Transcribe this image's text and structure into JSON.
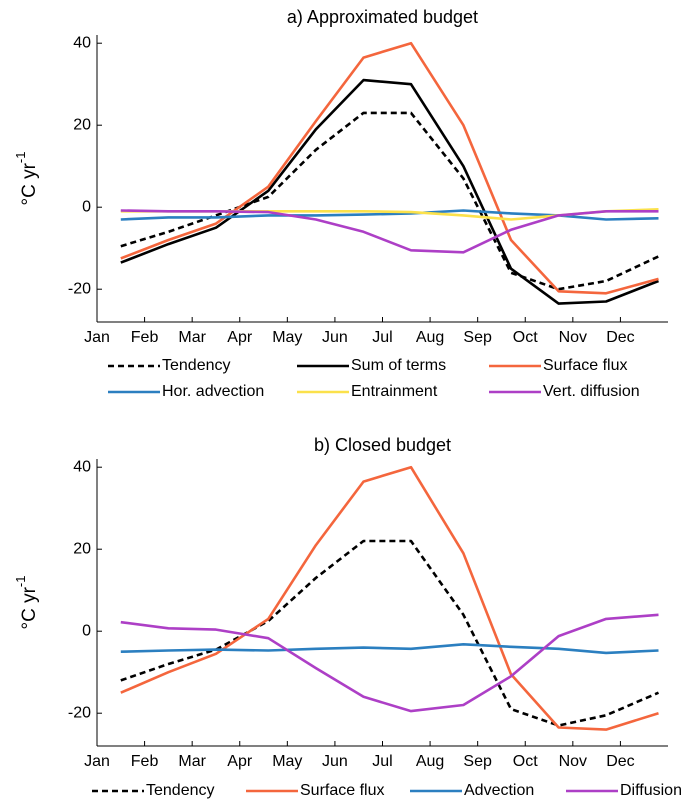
{
  "chart_data": [
    {
      "type": "line",
      "title": "a) Approximated budget",
      "ylabel": {
        "text": "°C yr",
        "superscript": "-1"
      },
      "xlim": [
        0,
        12
      ],
      "xticks": [
        {
          "value": 0,
          "label": "Jan"
        },
        {
          "value": 1,
          "label": "Feb"
        },
        {
          "value": 2,
          "label": "Mar"
        },
        {
          "value": 3,
          "label": "Apr"
        },
        {
          "value": 4,
          "label": "May"
        },
        {
          "value": 5,
          "label": "Jun"
        },
        {
          "value": 6,
          "label": "Jul"
        },
        {
          "value": 7,
          "label": "Aug"
        },
        {
          "value": 8,
          "label": "Sep"
        },
        {
          "value": 9,
          "label": "Oct"
        },
        {
          "value": 10,
          "label": "Nov"
        },
        {
          "value": 11,
          "label": "Dec"
        }
      ],
      "ylim": [
        -28,
        42
      ],
      "yticks": [
        -20,
        0,
        20,
        40
      ],
      "x": [
        0.5,
        1.5,
        2.5,
        3.6,
        4.6,
        5.6,
        6.6,
        7.7,
        8.7,
        9.7,
        10.7,
        11.8
      ],
      "series": [
        {
          "name": "Tendency",
          "color": "#000000",
          "dashed": true,
          "values": [
            -9.5,
            -6,
            -2,
            2.5,
            14,
            23,
            23,
            7,
            -16,
            -20,
            -18,
            -12
          ]
        },
        {
          "name": "Sum of terms",
          "color": "#000000",
          "dashed": false,
          "values": [
            -13.5,
            -9,
            -5,
            4,
            19,
            31,
            30,
            10,
            -15,
            -23.5,
            -23,
            -18
          ]
        },
        {
          "name": "Surface flux",
          "color": "#f4663d",
          "dashed": false,
          "values": [
            -12.5,
            -8,
            -4,
            5,
            21,
            36.5,
            40,
            20,
            -8,
            -20.5,
            -21,
            -17.5
          ]
        },
        {
          "name": "Hor. advection",
          "color": "#2b7fc0",
          "dashed": false,
          "values": [
            -3,
            -2.5,
            -2.5,
            -2,
            -2,
            -1.8,
            -1.5,
            -0.8,
            -1.5,
            -2,
            -3,
            -2.7
          ]
        },
        {
          "name": "Entrainment",
          "color": "#fbe14b",
          "dashed": false,
          "values": [
            -1,
            -1,
            -1,
            -1,
            -1,
            -1,
            -1.2,
            -2,
            -3,
            -2,
            -1,
            -0.5
          ]
        },
        {
          "name": "Vert. diffusion",
          "color": "#ad3fc6",
          "dashed": false,
          "values": [
            -0.8,
            -1,
            -1,
            -1.2,
            -3,
            -6,
            -10.5,
            -11,
            -5.5,
            -2,
            -1,
            -1
          ]
        }
      ]
    },
    {
      "type": "line",
      "title": "b) Closed budget",
      "ylabel": {
        "text": "°C yr",
        "superscript": "-1"
      },
      "xlim": [
        0,
        12
      ],
      "xticks": [
        {
          "value": 0,
          "label": "Jan"
        },
        {
          "value": 1,
          "label": "Feb"
        },
        {
          "value": 2,
          "label": "Mar"
        },
        {
          "value": 3,
          "label": "Apr"
        },
        {
          "value": 4,
          "label": "May"
        },
        {
          "value": 5,
          "label": "Jun"
        },
        {
          "value": 6,
          "label": "Jul"
        },
        {
          "value": 7,
          "label": "Aug"
        },
        {
          "value": 8,
          "label": "Sep"
        },
        {
          "value": 9,
          "label": "Oct"
        },
        {
          "value": 10,
          "label": "Nov"
        },
        {
          "value": 11,
          "label": "Dec"
        }
      ],
      "ylim": [
        -28,
        42
      ],
      "yticks": [
        -20,
        0,
        20,
        40
      ],
      "x": [
        0.5,
        1.5,
        2.5,
        3.6,
        4.6,
        5.6,
        6.6,
        7.7,
        8.7,
        9.7,
        10.7,
        11.8
      ],
      "series": [
        {
          "name": "Tendency",
          "color": "#000000",
          "dashed": true,
          "values": [
            -12,
            -8,
            -4.5,
            2.5,
            13,
            22,
            22,
            4,
            -19,
            -23,
            -20.5,
            -15
          ]
        },
        {
          "name": "Surface flux",
          "color": "#f4663d",
          "dashed": false,
          "values": [
            -15,
            -10,
            -5.5,
            3,
            21,
            36.5,
            40,
            19,
            -10.5,
            -23.5,
            -24,
            -20
          ]
        },
        {
          "name": "Advection",
          "color": "#2b7fc0",
          "dashed": false,
          "values": [
            -5,
            -4.7,
            -4.5,
            -4.7,
            -4.3,
            -4,
            -4.3,
            -3.2,
            -3.8,
            -4.3,
            -5.3,
            -4.7
          ]
        },
        {
          "name": "Diffusion",
          "color": "#ad3fc6",
          "dashed": false,
          "values": [
            2.2,
            0.7,
            0.4,
            -1.7,
            -9,
            -16,
            -19.5,
            -18,
            -11,
            -1.2,
            3,
            4
          ]
        }
      ]
    }
  ]
}
